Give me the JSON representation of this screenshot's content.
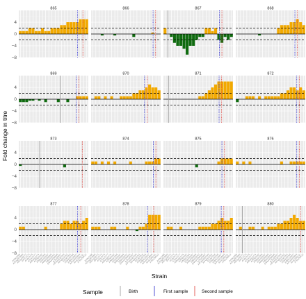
{
  "chart_data": {
    "type": "bar",
    "facet_layout": "4x4",
    "title": "",
    "xlabel": "Strain",
    "ylabel": "Fold change in titre",
    "ylim": [
      -8,
      8
    ],
    "yticks": [
      "−8",
      "−4",
      "0",
      "4"
    ],
    "threshold_lines": [
      2,
      -2
    ],
    "colors": {
      "increase": "#f2a900",
      "decrease": "#0f6b0f",
      "birth": "#a0a0a0",
      "first_sample": "#3c3cd2",
      "second_sample": "#e0504a",
      "panel_bg": "#ebebeb"
    },
    "legend": {
      "title": "Sample",
      "placement": "bottom",
      "entries": [
        "Birth",
        "First sample",
        "Second sample"
      ]
    },
    "x_strain_labels": [
      "A/HK/1/68",
      "A/Eng/878/69",
      "A/Eng/42/72",
      "A/PC/1/73",
      "A/Vic/3/75",
      "A/Tex/1/77",
      "A/Bang/1/79",
      "A/Phil/2/82",
      "A/Miss/1/85",
      "A/Sich/2/87",
      "A/Bei/353/89",
      "A/Bei/32/92",
      "A/Wuh/359/95",
      "A/Syd/5/97",
      "A/Pan/2007/99",
      "A/Fuj/411/02",
      "A/Cal/7/04",
      "A/Wis/67/05",
      "A/Bris/10/07",
      "A/Perth/16/09",
      "A/Vic/361/11",
      "A/Tex/50/12"
    ],
    "panels": [
      {
        "id": "865",
        "birth": null,
        "first": 18.6,
        "second": 20.3,
        "values": [
          1,
          1,
          1,
          2,
          2,
          1,
          1,
          2,
          1,
          1,
          2,
          2,
          2,
          3,
          3,
          4,
          4,
          4,
          4,
          5,
          5,
          5
        ]
      },
      {
        "id": "866",
        "birth": null,
        "first": 19.6,
        "second": 20.4,
        "values": [
          0,
          0,
          0,
          -0.5,
          0,
          0,
          0,
          -0.5,
          0,
          0,
          0,
          0,
          0,
          -1,
          0,
          0,
          0,
          0,
          0,
          0.5,
          0,
          0
        ]
      },
      {
        "id": "867",
        "birth": 1.4,
        "first": 17.7,
        "second": 18.5,
        "values": [
          2,
          0,
          -1,
          -3,
          -4,
          -4,
          -5,
          -7,
          -4,
          -4,
          -2,
          -1,
          -1,
          2,
          2,
          1,
          2,
          -2,
          -3,
          -1,
          -2,
          -1
        ]
      },
      {
        "id": "868",
        "birth": null,
        "first": 18.7,
        "second": 19.5,
        "values": [
          0,
          0,
          0,
          0,
          0,
          0,
          0,
          -0.5,
          0,
          0,
          0,
          0,
          0,
          2,
          3,
          3,
          3,
          4,
          4,
          5,
          4,
          3
        ]
      },
      {
        "id": "869",
        "birth": 13.2,
        "first": 18.2,
        "second": 19.0,
        "values": [
          -1,
          -1,
          -1,
          -0.5,
          -0.5,
          0,
          -0.5,
          0,
          -1,
          0,
          0,
          0,
          -1,
          0,
          0,
          -1,
          0,
          0,
          1,
          1,
          1,
          1
        ]
      },
      {
        "id": "870",
        "birth": null,
        "first": 16.9,
        "second": 17.7,
        "values": [
          0,
          1,
          1,
          0,
          1,
          0,
          1,
          0,
          0,
          1,
          1,
          1,
          1,
          2,
          2,
          3,
          3,
          4,
          5,
          4,
          4,
          3
        ]
      },
      {
        "id": "871",
        "birth": 1.6,
        "first": 17.6,
        "second": 18.4,
        "values": [
          0,
          0,
          0,
          0,
          0,
          0,
          0,
          0,
          0,
          0,
          0,
          1,
          1,
          2,
          3,
          4,
          5,
          6,
          6,
          6,
          6,
          6
        ]
      },
      {
        "id": "872",
        "birth": null,
        "first": 19.3,
        "second": 20.1,
        "values": [
          -1,
          0,
          0,
          1,
          1,
          1,
          0,
          1,
          0,
          1,
          1,
          1,
          1,
          1,
          2,
          2,
          3,
          4,
          4,
          3,
          4,
          3
        ]
      },
      {
        "id": "873",
        "birth": 6.6,
        "first": null,
        "second": 20.1,
        "values": [
          -0.5,
          0,
          0,
          0,
          0,
          0,
          0,
          0,
          0,
          0,
          0,
          0,
          0,
          0,
          -1,
          0,
          0,
          0,
          0,
          0,
          0,
          0
        ]
      },
      {
        "id": "874",
        "birth": null,
        "first": 19.7,
        "second": 20.5,
        "values": [
          1,
          1,
          0,
          1,
          0,
          1,
          0,
          1,
          0,
          0,
          0,
          0,
          1,
          0,
          0,
          0,
          0,
          1,
          1,
          1,
          2,
          2
        ]
      },
      {
        "id": "875",
        "birth": null,
        "first": 18.5,
        "second": 19.3,
        "values": [
          0,
          0,
          0,
          0,
          0,
          0,
          0,
          0,
          0,
          0,
          -1,
          0,
          0,
          0,
          0,
          0,
          0,
          1,
          2,
          2,
          2,
          2
        ]
      },
      {
        "id": "876",
        "birth": null,
        "first": 19.3,
        "second": 20.1,
        "values": [
          1,
          0,
          1,
          0,
          1,
          0,
          0,
          0,
          0,
          0,
          0,
          0,
          0,
          0,
          1,
          0,
          0,
          1,
          1,
          1,
          1,
          1
        ]
      },
      {
        "id": "877",
        "birth": null,
        "first": 18.6,
        "second": 19.6,
        "values": [
          1,
          1,
          0,
          0,
          0,
          0,
          0,
          0,
          1,
          0,
          0,
          0,
          0,
          2,
          3,
          3,
          2,
          3,
          3,
          2,
          3,
          4
        ]
      },
      {
        "id": "878",
        "birth": null,
        "first": 17.8,
        "second": 19.8,
        "values": [
          1,
          1,
          1,
          0,
          0,
          0,
          1,
          1,
          0,
          0,
          0,
          1,
          0,
          0,
          -0.5,
          1,
          1,
          2,
          5,
          5,
          5,
          5
        ]
      },
      {
        "id": "879",
        "birth": null,
        "first": 18.3,
        "second": 19.1,
        "values": [
          0,
          1,
          1,
          0,
          0,
          1,
          0,
          0,
          0,
          0,
          0,
          1,
          1,
          1,
          1,
          2,
          2,
          3,
          4,
          3,
          3,
          4
        ]
      },
      {
        "id": "880",
        "birth": 2.1,
        "first": null,
        "second": 20.5,
        "values": [
          0,
          1,
          0,
          0,
          1,
          1,
          0,
          0,
          1,
          0,
          1,
          1,
          1,
          2,
          2,
          3,
          3,
          4,
          5,
          4,
          3,
          3
        ]
      }
    ]
  }
}
